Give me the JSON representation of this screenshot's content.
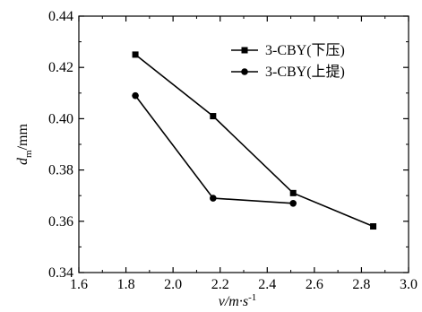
{
  "chart_data": {
    "type": "line",
    "xlabel": "v/m·s",
    "xlabel_sup": "-1",
    "ylabel": "d",
    "ylabel_sub": "m",
    "ylabel_unit": "/mm",
    "xlim": [
      1.6,
      3.0
    ],
    "ylim": [
      0.34,
      0.44
    ],
    "xticks": [
      "1.6",
      "1.8",
      "2.0",
      "2.2",
      "2.4",
      "2.6",
      "2.8",
      "3.0"
    ],
    "yticks": [
      "0.34",
      "0.36",
      "0.38",
      "0.40",
      "0.42",
      "0.44"
    ],
    "grid": false,
    "legend_position": "top-right",
    "series": [
      {
        "name": "3-CBY(下压)",
        "marker": "square",
        "color": "#000000",
        "x": [
          1.84,
          2.17,
          2.51,
          2.85
        ],
        "y": [
          0.425,
          0.401,
          0.371,
          0.358
        ]
      },
      {
        "name": "3-CBY(上提)",
        "marker": "circle",
        "color": "#000000",
        "x": [
          1.84,
          2.17,
          2.51
        ],
        "y": [
          0.409,
          0.369,
          0.367
        ]
      }
    ]
  }
}
